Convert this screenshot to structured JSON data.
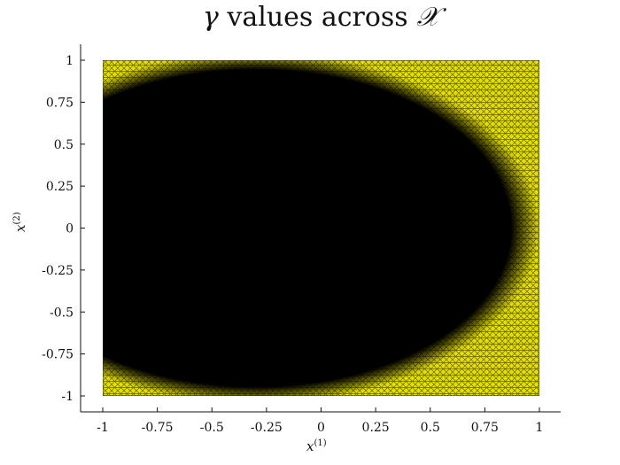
{
  "chart_data": {
    "type": "heatmap",
    "title_symbol": "γ",
    "title_text": "values across",
    "title_set": "𝒳",
    "xlabel": "x",
    "xlabel_sup": "(1)",
    "ylabel": "x",
    "ylabel_sup": "(2)",
    "xlim": [
      -1,
      1
    ],
    "ylim": [
      -1,
      1
    ],
    "x_ticks": [
      -1,
      -0.75,
      -0.5,
      -0.25,
      0,
      0.25,
      0.5,
      0.75,
      1
    ],
    "x_tick_labels": [
      "-1",
      "-0.75",
      "-0.5",
      "-0.25",
      "0",
      "0.25",
      "0.5",
      "0.75",
      "1"
    ],
    "y_ticks": [
      1,
      0.75,
      0.5,
      0.25,
      0,
      -0.25,
      -0.5,
      -0.75,
      -1
    ],
    "y_tick_labels": [
      "1",
      "0.75",
      "0.5",
      "0.25",
      "0",
      "-0.25",
      "-0.5",
      "-0.75",
      "-1"
    ],
    "region_shape": "ellipse",
    "region_center": [
      -0.3,
      0
    ],
    "region_radii": [
      1.3,
      1.05
    ],
    "inside_color": "#000000",
    "outside_color": "#e6e000",
    "mesh_color": "#000000",
    "grid": false
  }
}
